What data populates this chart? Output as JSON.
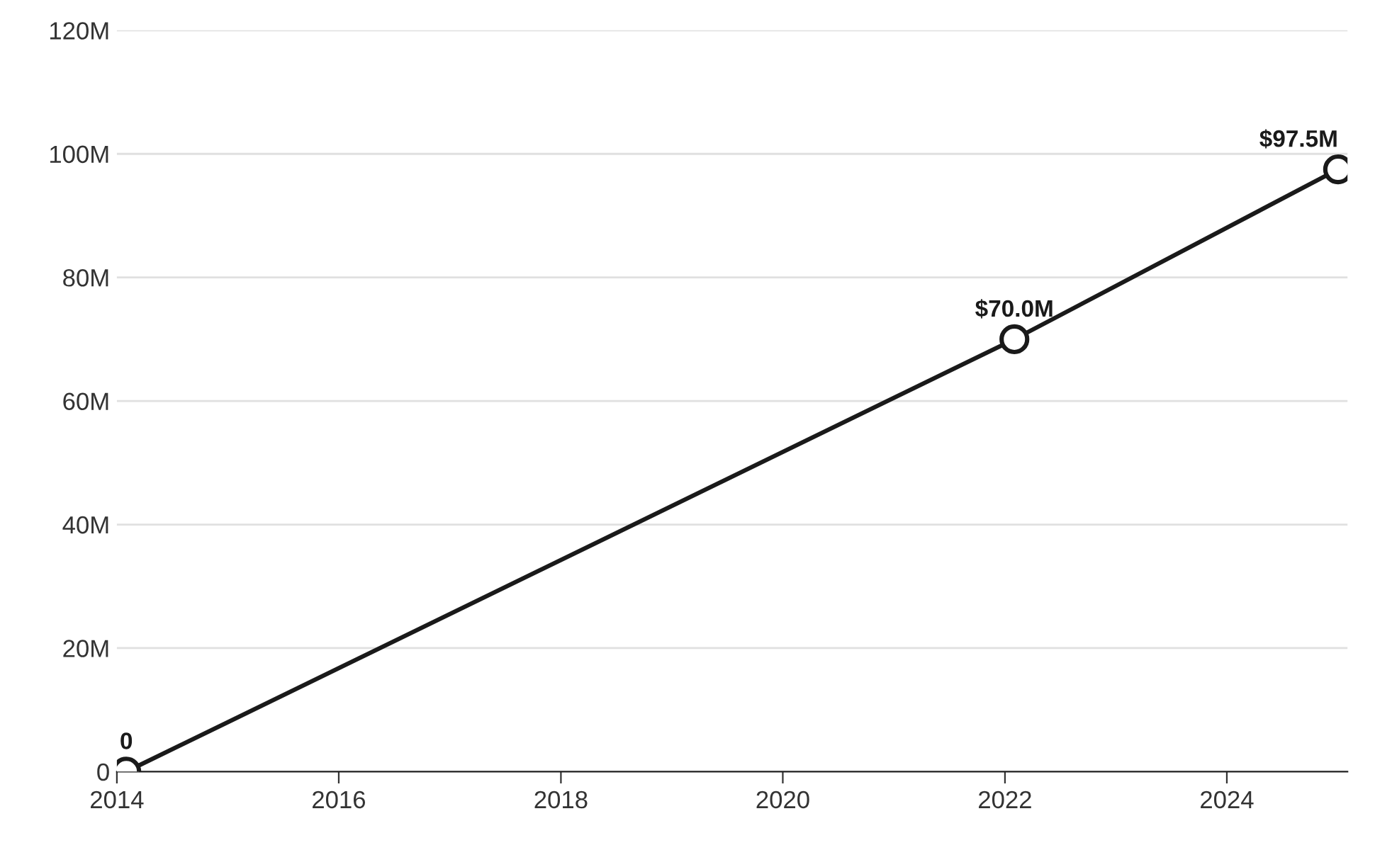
{
  "chart_data": {
    "type": "line",
    "x": [
      "2014-02",
      "2022-02",
      "2025-01"
    ],
    "series": [
      {
        "color": "#1a1a1a",
        "values": [
          0,
          70,
          97.5
        ],
        "value_labels": [
          "0",
          "$70.0M",
          "$97.5M"
        ]
      }
    ],
    "xlim": [
      "2014-01",
      "2025-02"
    ],
    "xticks": [
      "2014",
      "2016",
      "2018",
      "2020",
      "2022",
      "2024"
    ],
    "ylim": [
      0,
      120
    ],
    "yticks": [
      {
        "value": 0,
        "label": "0"
      },
      {
        "value": 20,
        "label": "20M"
      },
      {
        "value": 40,
        "label": "40M"
      },
      {
        "value": 60,
        "label": "60M"
      },
      {
        "value": 80,
        "label": "80M"
      },
      {
        "value": 100,
        "label": "100M"
      },
      {
        "value": 120,
        "label": "120M"
      }
    ],
    "grid": "y",
    "marker": "circle",
    "line_style": "solid",
    "legend": false
  }
}
